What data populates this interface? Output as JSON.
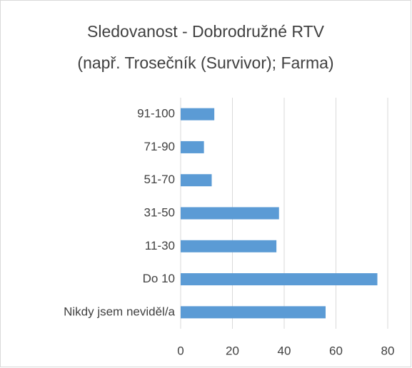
{
  "chart_data": {
    "type": "bar",
    "orientation": "horizontal",
    "title": [
      "Sledovanost - Dobrodružné RTV",
      "(např. Trosečník (Survivor); Farma)"
    ],
    "categories": [
      "91-100",
      "71-90",
      "51-70",
      "31-50",
      "11-30",
      "Do 10",
      "Nikdy jsem neviděl/a"
    ],
    "values": [
      13,
      9,
      12,
      38,
      37,
      76,
      56
    ],
    "color": "#5b9bd5",
    "xlim": [
      0,
      80
    ],
    "xticks": [
      0,
      20,
      40,
      60,
      80
    ],
    "grid": true
  }
}
